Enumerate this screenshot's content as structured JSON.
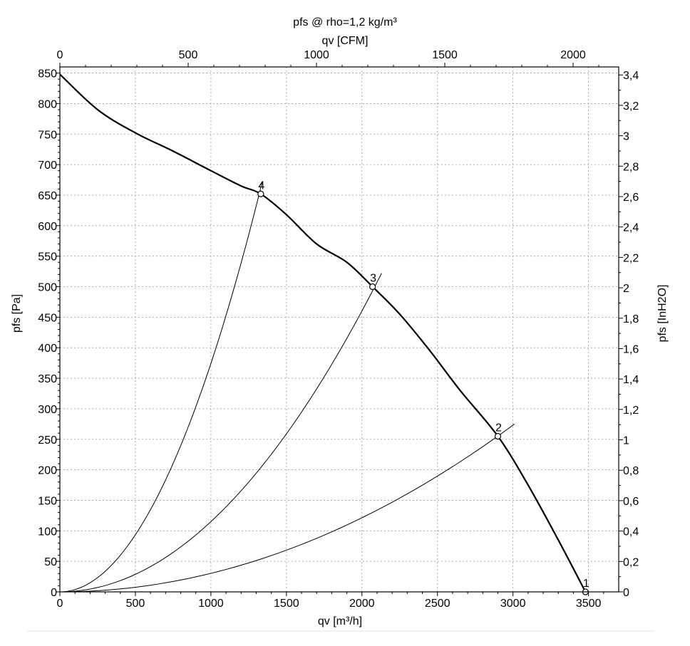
{
  "chart_data": {
    "type": "line",
    "title": "pfs @ rho=1,2 kg/m³",
    "xlabel": "qv [m³/h]",
    "ylabel": "pfs [Pa]",
    "x2label": "qv [CFM]",
    "y2label": "pfs [InH2O]",
    "xlim": [
      0,
      3700
    ],
    "ylim": [
      0,
      860
    ],
    "x_ticks": [
      "0",
      "500",
      "1000",
      "1500",
      "2000",
      "2500",
      "3000",
      "3500"
    ],
    "y_ticks": [
      "0",
      "50",
      "100",
      "150",
      "200",
      "250",
      "300",
      "350",
      "400",
      "450",
      "500",
      "550",
      "600",
      "650",
      "700",
      "750",
      "800",
      "850"
    ],
    "x2_ticks": [
      "0",
      "500",
      "1000",
      "1500",
      "2000"
    ],
    "y2_ticks": [
      "0",
      "0,2",
      "0,4",
      "0,6",
      "0,8",
      "1",
      "1,2",
      "1,4",
      "1,6",
      "1,8",
      "2",
      "2,2",
      "2,4",
      "2,6",
      "2,8",
      "3",
      "3,2",
      "3,4"
    ],
    "grid": true,
    "series": [
      {
        "x": [
          0,
          250,
          500,
          750,
          1000,
          1200,
          1330,
          1500,
          1700,
          1900,
          2070,
          2250,
          2450,
          2650,
          2900,
          3100,
          3300,
          3480
        ],
        "y": [
          848,
          790,
          752,
          722,
          690,
          665,
          652,
          618,
          570,
          540,
          500,
          455,
          395,
          330,
          255,
          175,
          85,
          0
        ]
      }
    ],
    "system_curves": [
      {
        "x_end": 3010,
        "y_end": 275
      },
      {
        "x_end": 2130,
        "y_end": 522
      },
      {
        "x_end": 1340,
        "y_end": 672
      }
    ],
    "operating_points": [
      {
        "label": "1",
        "x": 3480,
        "y": 0
      },
      {
        "label": "2",
        "x": 2900,
        "y": 255
      },
      {
        "label": "3",
        "x": 2070,
        "y": 500
      },
      {
        "label": "4",
        "x": 1330,
        "y": 652
      }
    ]
  }
}
